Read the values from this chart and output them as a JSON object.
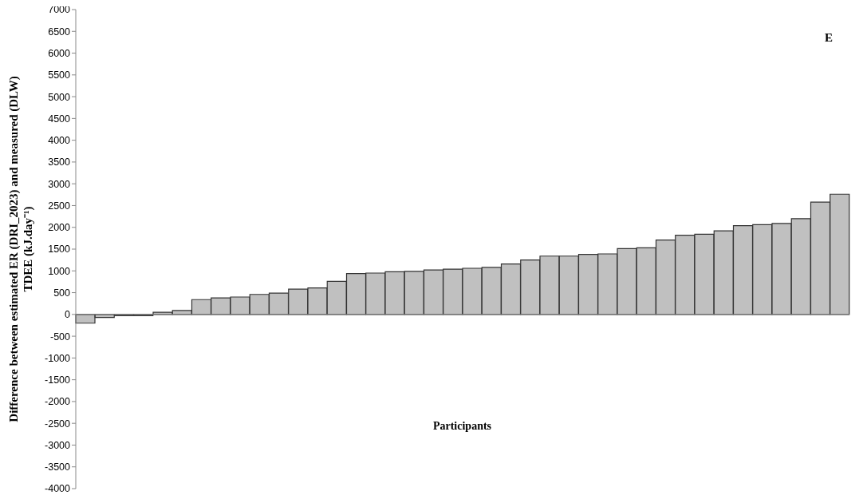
{
  "chart_data": {
    "type": "bar",
    "xlabel": "Participants",
    "ylabel": "Difference between estimated ER (DRI_2023) and measured (DLW) TDEE (kJ.day⁻¹)",
    "annotations": [
      "E"
    ],
    "categories": [
      null,
      null,
      null,
      null,
      null,
      null,
      null,
      null,
      null,
      null,
      null,
      null,
      null,
      null,
      null,
      null,
      null,
      null,
      null,
      null,
      null,
      null,
      null,
      null,
      null,
      null,
      null,
      null,
      null,
      null,
      null,
      null,
      null,
      null,
      null,
      null,
      null,
      null,
      null,
      null
    ],
    "values": [
      -200,
      -70,
      -30,
      -30,
      50,
      90,
      340,
      380,
      400,
      460,
      490,
      580,
      610,
      760,
      940,
      950,
      980,
      990,
      1020,
      1040,
      1060,
      1080,
      1160,
      1250,
      1340,
      1340,
      1380,
      1390,
      1510,
      1530,
      1710,
      1820,
      1840,
      1920,
      2040,
      2060,
      2090,
      2200,
      2580,
      2760
    ],
    "color": "#c0c0c0",
    "ylim": [
      -4000,
      7000
    ],
    "yticks": [
      -4000,
      -3500,
      -3000,
      -2500,
      -2000,
      -1500,
      -1000,
      -500,
      0,
      500,
      1000,
      1500,
      2000,
      2500,
      3000,
      3500,
      4000,
      4500,
      5000,
      5500,
      6000,
      6500,
      7000
    ]
  }
}
